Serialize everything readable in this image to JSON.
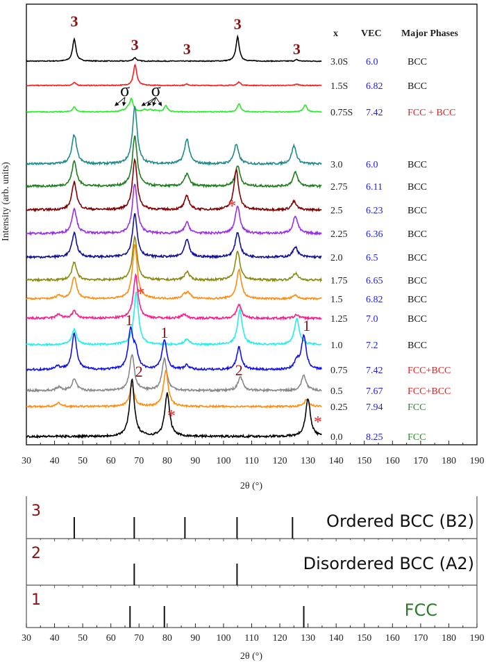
{
  "chart_data": [
    {
      "type": "line",
      "title": "",
      "xlabel": "2θ (°)",
      "ylabel": "Intensity (arb. units)",
      "xlim": [
        30,
        190
      ],
      "xticks": [
        30,
        40,
        50,
        60,
        70,
        80,
        90,
        100,
        110,
        120,
        130,
        140,
        150,
        160,
        170,
        180,
        190
      ],
      "grid": false,
      "table_headers": {
        "x": "x",
        "vec": "VEC",
        "phases": "Major Phases"
      },
      "series": [
        {
          "name": "3.0S",
          "vec": "6.0",
          "phase": "BCC",
          "color": "#000000",
          "phase_color": "#111111",
          "peaks": [
            [
              47,
              32
            ],
            [
              68.5,
              5
            ],
            [
              105,
              35
            ],
            [
              126,
              2
            ]
          ]
        },
        {
          "name": "1.5S",
          "vec": "6.82",
          "phase": "BCC",
          "color": "#ff1a1a",
          "phase_color": "#111111",
          "peaks": [
            [
              47,
              4
            ],
            [
              68.6,
              30
            ],
            [
              87,
              2
            ],
            [
              105.5,
              5
            ],
            [
              126,
              2
            ]
          ]
        },
        {
          "name": "0.75S",
          "vec": "7.42",
          "phase": "FCC + BCC",
          "color": "#22ee22",
          "phase_color": "#e02020",
          "peaks": [
            [
              47,
              7
            ],
            [
              64,
              2
            ],
            [
              66,
              5
            ],
            [
              67.3,
              18
            ],
            [
              72,
              3
            ],
            [
              74,
              3
            ],
            [
              76,
              2
            ],
            [
              79.5,
              9
            ],
            [
              105.5,
              12
            ],
            [
              129,
              10
            ]
          ]
        },
        {
          "name": "3.0",
          "vec": "6.0",
          "phase": "BCC",
          "color": "#1f8a8a",
          "phase_color": "#111111",
          "peaks": [
            [
              47,
              42
            ],
            [
              68.5,
              82
            ],
            [
              87,
              36
            ],
            [
              104.5,
              28
            ],
            [
              125,
              26
            ]
          ]
        },
        {
          "name": "2.75",
          "vec": "6.11",
          "phase": "BCC",
          "color": "#1e7e1e",
          "phase_color": "#111111",
          "peaks": [
            [
              47,
              36
            ],
            [
              68.5,
              72
            ],
            [
              87,
              18
            ],
            [
              105,
              30
            ],
            [
              125.5,
              20
            ]
          ]
        },
        {
          "name": "2.5",
          "vec": "6.23",
          "phase": "BCC",
          "color": "#800000",
          "phase_color": "#111111",
          "peaks": [
            [
              47,
              40
            ],
            [
              68.5,
              72
            ],
            [
              87,
              20
            ],
            [
              104.5,
              58
            ],
            [
              125,
              12
            ]
          ]
        },
        {
          "name": "2.25",
          "vec": "6.36",
          "phase": "BCC",
          "color": "#9a2ee8",
          "phase_color": "#111111",
          "peaks": [
            [
              47,
              36
            ],
            [
              68.5,
              72
            ],
            [
              87,
              16
            ],
            [
              105,
              40
            ],
            [
              125.5,
              25
            ]
          ]
        },
        {
          "name": "2.0",
          "vec": "6.5",
          "phase": "BCC",
          "color": "#10109a",
          "phase_color": "#111111",
          "peaks": [
            [
              47,
              35
            ],
            [
              68.5,
              62
            ],
            [
              87,
              25
            ],
            [
              105,
              36
            ],
            [
              125.5,
              15
            ]
          ]
        },
        {
          "name": "1.75",
          "vec": "6.65",
          "phase": "BCC",
          "color": "#8a8a10",
          "phase_color": "#111111",
          "peaks": [
            [
              47,
              25
            ],
            [
              68.5,
              62
            ],
            [
              87,
              12
            ],
            [
              105,
              42
            ],
            [
              125.5,
              10
            ]
          ]
        },
        {
          "name": "1.5",
          "vec": "6.82",
          "phase": "BCC",
          "color": "#ff8c10",
          "phase_color": "#111111",
          "peaks": [
            [
              41.5,
              5
            ],
            [
              47,
              32
            ],
            [
              68.5,
              78
            ],
            [
              86,
              5
            ],
            [
              87.5,
              8
            ],
            [
              105.5,
              42
            ],
            [
              125.5,
              5
            ]
          ]
        },
        {
          "name": "1.25",
          "vec": "7.0",
          "phase": "BCC",
          "color": "#ff1a8c",
          "phase_color": "#111111",
          "peaks": [
            [
              41.5,
              6
            ],
            [
              47,
              10
            ],
            [
              68.8,
              62
            ],
            [
              86,
              6
            ],
            [
              105.5,
              20
            ],
            [
              126,
              5
            ]
          ]
        },
        {
          "name": "1.0",
          "vec": "7.2",
          "phase": "BCC",
          "color": "#22eeee",
          "phase_color": "#111111",
          "peaks": [
            [
              47,
              22
            ],
            [
              69,
              75
            ],
            [
              87,
              8
            ],
            [
              105.8,
              50
            ],
            [
              126,
              38
            ]
          ]
        },
        {
          "name": "0.75",
          "vec": "7.42",
          "phase": "FCC+BCC",
          "color": "#1010ee",
          "phase_color": "#e02020",
          "peaks": [
            [
              41,
              5
            ],
            [
              47,
              52
            ],
            [
              67,
              55
            ],
            [
              68.8,
              25
            ],
            [
              79,
              42
            ],
            [
              87,
              6
            ],
            [
              105.5,
              32
            ],
            [
              126,
              12
            ],
            [
              128.5,
              48
            ]
          ]
        },
        {
          "name": "0.5",
          "vec": "7.67",
          "phase": "FCC+BCC",
          "color": "#888888",
          "phase_color": "#e02020",
          "peaks": [
            [
              41.5,
              5
            ],
            [
              47,
              16
            ],
            [
              67.5,
              52
            ],
            [
              79,
              46
            ],
            [
              106,
              20
            ],
            [
              128.5,
              22
            ]
          ]
        },
        {
          "name": "0.25",
          "vec": "7.94",
          "phase": "FCC",
          "color": "#ff8c10",
          "phase_color": "#2a8a2a",
          "peaks": [
            [
              41.5,
              5
            ],
            [
              67.5,
              30
            ],
            [
              79.5,
              52
            ],
            [
              129.5,
              10
            ]
          ]
        },
        {
          "name": "0.0",
          "vec": "8.25",
          "phase": "FCC",
          "color": "#000000",
          "phase_color": "#2a8a2a",
          "peaks": [
            [
              67.5,
              82
            ],
            [
              80,
              62
            ],
            [
              130,
              55
            ]
          ]
        }
      ],
      "annotations": [
        {
          "text": "3",
          "two_theta": 47
        },
        {
          "text": "3",
          "two_theta": 68.5
        },
        {
          "text": "3",
          "two_theta": 87
        },
        {
          "text": "3",
          "two_theta": 105
        },
        {
          "text": "3",
          "two_theta": 126
        },
        {
          "text": "σ",
          "two_theta": 65
        },
        {
          "text": "σ",
          "two_theta": 76
        },
        {
          "text": "*",
          "two_theta": 70.5
        },
        {
          "text": "*",
          "two_theta": 103
        },
        {
          "text": "*",
          "two_theta": 81.5
        },
        {
          "text": "*",
          "two_theta": 133.5
        },
        {
          "text": "1",
          "two_theta": 66.5
        },
        {
          "text": "1",
          "two_theta": 79
        },
        {
          "text": "1",
          "two_theta": 129.5
        },
        {
          "text": "2",
          "two_theta": 70
        },
        {
          "text": "2",
          "two_theta": 105.5
        }
      ],
      "colors": {
        "annotation": "#8b1010",
        "asterisk": "#ff2020",
        "vec": "#2020e0"
      }
    },
    {
      "type": "bar",
      "xlabel": "2θ (°)",
      "xlim": [
        30,
        190
      ],
      "xticks": [
        30,
        40,
        50,
        60,
        70,
        80,
        90,
        100,
        110,
        120,
        130,
        140,
        150,
        160,
        170,
        180,
        190
      ],
      "panels": [
        {
          "index": "3",
          "name": "Ordered BCC (B2)",
          "color": "#111111",
          "lines": [
            47,
            68.3,
            86.3,
            104.8,
            124.5
          ]
        },
        {
          "index": "2",
          "name": "Disordered BCC (A2)",
          "color": "#111111",
          "lines": [
            68.3,
            104.8
          ]
        },
        {
          "index": "1",
          "name": "FCC",
          "color": "#2a7a2a",
          "lines": [
            66.8,
            79,
            128.5
          ]
        }
      ]
    }
  ]
}
